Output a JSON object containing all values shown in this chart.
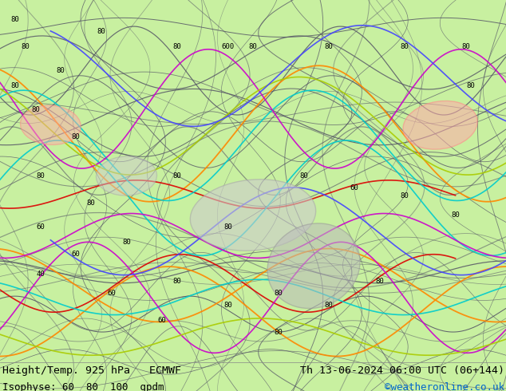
{
  "background_color": "#c8f0a0",
  "map_bg_color": "#c8f0a0",
  "title_left": "Height/Temp. 925 hPa   ECMWF",
  "title_right": "Th 13-06-2024 06:00 UTC (06+144)",
  "subtitle_left": "Isophyse: 60  80  100  gpdm",
  "subtitle_right": "©weatheronline.co.uk",
  "subtitle_right_color": "#0066cc",
  "text_color": "#000000",
  "fig_width": 6.34,
  "fig_height": 4.9,
  "dpi": 100,
  "bottom_bar_color": "#c8f0a0",
  "font_size_main": 9.5,
  "font_size_sub": 9.0
}
